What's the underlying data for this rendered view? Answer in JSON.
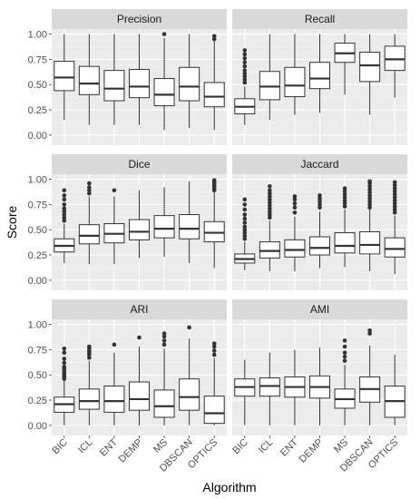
{
  "chart_data": {
    "type": "boxplot",
    "xlabel": "Algorithm",
    "ylabel": "Score",
    "categories": [
      "BIC",
      "ICL",
      "ENT",
      "DEMP",
      "MS",
      "DBSCAN",
      "OPTICS"
    ],
    "ylim": [
      -0.1,
      1.05
    ],
    "yticks": [
      "0.00",
      "0.25",
      "0.50",
      "0.75",
      "1.00"
    ],
    "yticks_values": [
      0,
      0.25,
      0.5,
      0.75,
      1.0
    ],
    "grid": true,
    "panels": [
      {
        "title": "Precision",
        "boxes": [
          {
            "min": 0.15,
            "q1": 0.44,
            "median": 0.57,
            "q3": 0.73,
            "max": 1.0,
            "outliers": []
          },
          {
            "min": 0.1,
            "q1": 0.4,
            "median": 0.51,
            "q3": 0.68,
            "max": 1.0,
            "outliers": []
          },
          {
            "min": 0.1,
            "q1": 0.34,
            "median": 0.46,
            "q3": 0.64,
            "max": 1.0,
            "outliers": []
          },
          {
            "min": 0.1,
            "q1": 0.37,
            "median": 0.48,
            "q3": 0.65,
            "max": 1.0,
            "outliers": []
          },
          {
            "min": 0.05,
            "q1": 0.29,
            "median": 0.4,
            "q3": 0.56,
            "max": 0.96,
            "outliers": [
              1.0
            ]
          },
          {
            "min": 0.07,
            "q1": 0.34,
            "median": 0.48,
            "q3": 0.67,
            "max": 1.0,
            "outliers": []
          },
          {
            "min": 0.05,
            "q1": 0.28,
            "median": 0.38,
            "q3": 0.52,
            "max": 0.93,
            "outliers": [
              0.95,
              0.98
            ]
          }
        ]
      },
      {
        "title": "Recall",
        "boxes": [
          {
            "min": 0.1,
            "q1": 0.21,
            "median": 0.28,
            "q3": 0.36,
            "max": 0.48,
            "outliers": [
              0.52,
              0.55,
              0.58,
              0.61,
              0.64,
              0.68,
              0.72,
              0.76,
              0.8,
              0.84
            ]
          },
          {
            "min": 0.15,
            "q1": 0.35,
            "median": 0.48,
            "q3": 0.63,
            "max": 1.0,
            "outliers": []
          },
          {
            "min": 0.2,
            "q1": 0.38,
            "median": 0.49,
            "q3": 0.67,
            "max": 1.0,
            "outliers": []
          },
          {
            "min": 0.22,
            "q1": 0.46,
            "median": 0.56,
            "q3": 0.72,
            "max": 1.0,
            "outliers": []
          },
          {
            "min": 0.4,
            "q1": 0.72,
            "median": 0.81,
            "q3": 0.91,
            "max": 1.0,
            "outliers": []
          },
          {
            "min": 0.2,
            "q1": 0.53,
            "median": 0.69,
            "q3": 0.82,
            "max": 1.0,
            "outliers": []
          },
          {
            "min": 0.37,
            "q1": 0.64,
            "median": 0.75,
            "q3": 0.88,
            "max": 1.0,
            "outliers": []
          }
        ]
      },
      {
        "title": "Dice",
        "boxes": [
          {
            "min": 0.17,
            "q1": 0.28,
            "median": 0.34,
            "q3": 0.41,
            "max": 0.56,
            "outliers": [
              0.59,
              0.62,
              0.65,
              0.68,
              0.71,
              0.75,
              0.8,
              0.84,
              0.89
            ]
          },
          {
            "min": 0.16,
            "q1": 0.36,
            "median": 0.44,
            "q3": 0.55,
            "max": 0.83,
            "outliers": [
              0.86,
              0.89,
              0.92,
              0.96
            ]
          },
          {
            "min": 0.16,
            "q1": 0.37,
            "median": 0.46,
            "q3": 0.56,
            "max": 0.83,
            "outliers": [
              0.89
            ]
          },
          {
            "min": 0.22,
            "q1": 0.4,
            "median": 0.48,
            "q3": 0.6,
            "max": 0.89,
            "outliers": []
          },
          {
            "min": 0.23,
            "q1": 0.42,
            "median": 0.51,
            "q3": 0.64,
            "max": 0.92,
            "outliers": []
          },
          {
            "min": 0.17,
            "q1": 0.41,
            "median": 0.51,
            "q3": 0.65,
            "max": 0.98,
            "outliers": []
          },
          {
            "min": 0.12,
            "q1": 0.38,
            "median": 0.47,
            "q3": 0.58,
            "max": 0.87,
            "outliers": [
              0.89,
              0.91,
              0.93,
              0.95,
              0.97,
              0.99
            ]
          }
        ]
      },
      {
        "title": "Jaccard",
        "boxes": [
          {
            "min": 0.1,
            "q1": 0.17,
            "median": 0.21,
            "q3": 0.26,
            "max": 0.38,
            "outliers": [
              0.41,
              0.44,
              0.47,
              0.5,
              0.53,
              0.57,
              0.61,
              0.65,
              0.7,
              0.75,
              0.8
            ]
          },
          {
            "min": 0.09,
            "q1": 0.22,
            "median": 0.29,
            "q3": 0.38,
            "max": 0.59,
            "outliers": [
              0.62,
              0.65,
              0.68,
              0.71,
              0.74,
              0.77,
              0.8,
              0.83,
              0.86,
              0.89,
              0.93
            ]
          },
          {
            "min": 0.09,
            "q1": 0.23,
            "median": 0.3,
            "q3": 0.4,
            "max": 0.63,
            "outliers": [
              0.67,
              0.72,
              0.76,
              0.8,
              0.83
            ]
          },
          {
            "min": 0.12,
            "q1": 0.25,
            "median": 0.32,
            "q3": 0.43,
            "max": 0.68,
            "outliers": [
              0.72,
              0.75,
              0.78,
              0.81,
              0.84
            ]
          },
          {
            "min": 0.13,
            "q1": 0.27,
            "median": 0.34,
            "q3": 0.47,
            "max": 0.7,
            "outliers": [
              0.73,
              0.76,
              0.79,
              0.82,
              0.85,
              0.88,
              0.91
            ]
          },
          {
            "min": 0.09,
            "q1": 0.26,
            "median": 0.35,
            "q3": 0.48,
            "max": 0.7,
            "outliers": [
              0.72,
              0.75,
              0.78,
              0.81,
              0.84,
              0.87,
              0.9,
              0.93,
              0.96,
              0.98
            ]
          },
          {
            "min": 0.06,
            "q1": 0.23,
            "median": 0.31,
            "q3": 0.42,
            "max": 0.64,
            "outliers": [
              0.67,
              0.7,
              0.73,
              0.76,
              0.79,
              0.82,
              0.85,
              0.88,
              0.91,
              0.94,
              0.97
            ]
          }
        ]
      },
      {
        "title": "ARI",
        "boxes": [
          {
            "min": 0.0,
            "q1": 0.13,
            "median": 0.21,
            "q3": 0.28,
            "max": 0.44,
            "outliers": [
              0.46,
              0.48,
              0.5,
              0.52,
              0.54,
              0.56,
              0.58,
              0.62,
              0.66,
              0.72,
              0.76
            ]
          },
          {
            "min": 0.0,
            "q1": 0.16,
            "median": 0.24,
            "q3": 0.36,
            "max": 0.64,
            "outliers": [
              0.67,
              0.7,
              0.72,
              0.74,
              0.76,
              0.78
            ]
          },
          {
            "min": 0.0,
            "q1": 0.13,
            "median": 0.24,
            "q3": 0.39,
            "max": 0.72,
            "outliers": [
              0.8
            ]
          },
          {
            "min": 0.0,
            "q1": 0.15,
            "median": 0.26,
            "q3": 0.43,
            "max": 0.78,
            "outliers": [
              0.87
            ]
          },
          {
            "min": 0.0,
            "q1": 0.08,
            "median": 0.19,
            "q3": 0.35,
            "max": 0.76,
            "outliers": [
              0.8,
              0.84,
              0.88,
              0.91
            ]
          },
          {
            "min": 0.0,
            "q1": 0.15,
            "median": 0.28,
            "q3": 0.46,
            "max": 0.86,
            "outliers": [
              0.97
            ]
          },
          {
            "min": 0.0,
            "q1": 0.02,
            "median": 0.12,
            "q3": 0.29,
            "max": 0.67,
            "outliers": [
              0.7,
              0.74,
              0.78,
              0.81
            ]
          }
        ]
      },
      {
        "title": "AMI",
        "boxes": [
          {
            "min": 0.0,
            "q1": 0.29,
            "median": 0.38,
            "q3": 0.46,
            "max": 0.65,
            "outliers": []
          },
          {
            "min": 0.0,
            "q1": 0.29,
            "median": 0.39,
            "q3": 0.47,
            "max": 0.72,
            "outliers": []
          },
          {
            "min": 0.0,
            "q1": 0.28,
            "median": 0.38,
            "q3": 0.48,
            "max": 0.75,
            "outliers": []
          },
          {
            "min": 0.0,
            "q1": 0.27,
            "median": 0.38,
            "q3": 0.49,
            "max": 0.77,
            "outliers": []
          },
          {
            "min": 0.0,
            "q1": 0.17,
            "median": 0.26,
            "q3": 0.36,
            "max": 0.6,
            "outliers": [
              0.64,
              0.68,
              0.72,
              0.78,
              0.84
            ]
          },
          {
            "min": 0.0,
            "q1": 0.23,
            "median": 0.36,
            "q3": 0.48,
            "max": 0.79,
            "outliers": [
              0.91,
              0.94
            ]
          },
          {
            "min": 0.0,
            "q1": 0.08,
            "median": 0.24,
            "q3": 0.39,
            "max": 0.7,
            "outliers": []
          }
        ]
      }
    ]
  },
  "colors": {
    "panel_background": "#ebebeb",
    "strip_background": "#d9d9d9",
    "grid_major": "#ffffff",
    "grid_minor": "#f5f5f5",
    "box_fill": "#ffffff",
    "box_line": "#333333",
    "outlier": "#333333",
    "tick_text": "#4d4d4d"
  }
}
